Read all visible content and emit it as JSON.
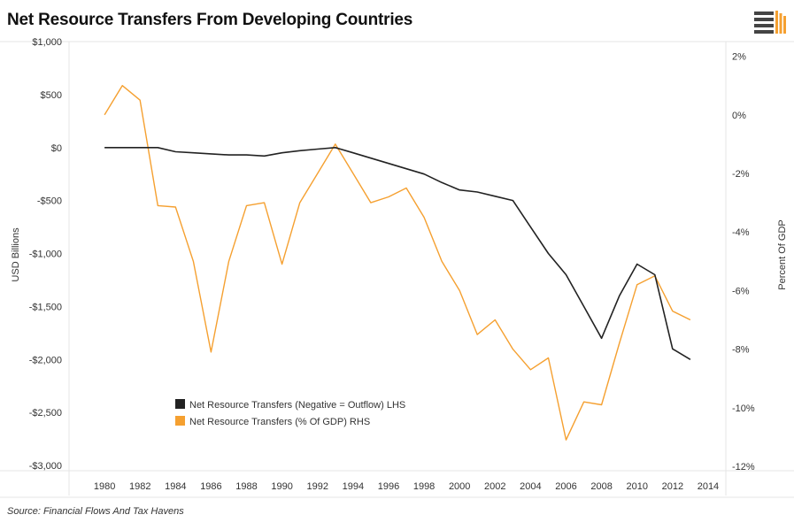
{
  "title": "Net Resource Transfers From Developing Countries",
  "source": "Source: Financial Flows And Tax Havens",
  "colors": {
    "usd_series": "#222222",
    "gdp_series": "#f5a030",
    "grid": "#e6e6e6",
    "logo": "#f5a030"
  },
  "chart_data": {
    "type": "line",
    "title": "Net Resource Transfers From Developing Countries",
    "xlabel": "",
    "ylabel": "USD Billions",
    "y2label": "Percent Of GDP",
    "xlim": [
      1978,
      2015
    ],
    "ylim": [
      -3050,
      1000
    ],
    "y2lim": [
      -12.15,
      2.5
    ],
    "x_ticks": [
      1980,
      1982,
      1984,
      1986,
      1988,
      1990,
      1992,
      1994,
      1996,
      1998,
      2000,
      2002,
      2004,
      2006,
      2008,
      2010,
      2012,
      2014
    ],
    "y_ticks": [
      {
        "value": 1000,
        "label": "$1,000"
      },
      {
        "value": 500,
        "label": "$500"
      },
      {
        "value": 0,
        "label": "$0"
      },
      {
        "value": -500,
        "label": "-$500"
      },
      {
        "value": -1000,
        "label": "-$1,000"
      },
      {
        "value": -1500,
        "label": "-$1,500"
      },
      {
        "value": -2000,
        "label": "-$2,000"
      },
      {
        "value": -2500,
        "label": "-$2,500"
      },
      {
        "value": -3000,
        "label": "-$3,000"
      }
    ],
    "y2_ticks": [
      {
        "value": 2,
        "label": "2%"
      },
      {
        "value": 0,
        "label": "0%"
      },
      {
        "value": -2,
        "label": "-2%"
      },
      {
        "value": -4,
        "label": "-4%"
      },
      {
        "value": -6,
        "label": "-6%"
      },
      {
        "value": -8,
        "label": "-8%"
      },
      {
        "value": -10,
        "label": "-10%"
      },
      {
        "value": -12,
        "label": "-12%"
      }
    ],
    "legend_position": "bottom-left",
    "series": [
      {
        "name": "Net Resource Transfers (Negative = Outflow) LHS",
        "axis": "left",
        "x": [
          1980,
          1981,
          1982,
          1983,
          1984,
          1985,
          1986,
          1987,
          1988,
          1989,
          1990,
          1991,
          1992,
          1993,
          1994,
          1995,
          1996,
          1997,
          1998,
          1999,
          2000,
          2001,
          2002,
          2003,
          2004,
          2005,
          2006,
          2007,
          2008,
          2009,
          2010,
          2011,
          2012,
          2013
        ],
        "y": [
          0,
          0,
          0,
          0,
          -40,
          -50,
          -60,
          -70,
          -70,
          -80,
          -50,
          -30,
          -15,
          0,
          -50,
          -100,
          -150,
          -200,
          -250,
          -330,
          -400,
          -420,
          -460,
          -500,
          -750,
          -1000,
          -1200,
          -1500,
          -1800,
          -1400,
          -1100,
          -1200,
          -1900,
          -2000
        ]
      },
      {
        "name": "Net Resource Transfers (% Of GDP) RHS",
        "axis": "right",
        "x": [
          1980,
          1981,
          1982,
          1983,
          1984,
          1985,
          1986,
          1987,
          1988,
          1989,
          1990,
          1991,
          1992,
          1993,
          1994,
          1995,
          1996,
          1997,
          1998,
          1999,
          2000,
          2001,
          2002,
          2003,
          2004,
          2005,
          2006,
          2007,
          2008,
          2009,
          2010,
          2011,
          2012,
          2013
        ],
        "y": [
          0,
          1,
          0.5,
          -3.1,
          -3.15,
          -5,
          -8.1,
          -5,
          -3.1,
          -3,
          -5.1,
          -3,
          -2,
          -1,
          -2,
          -3,
          -2.8,
          -2.5,
          -3.5,
          -5,
          -6,
          -7.5,
          -7,
          -8,
          -8.7,
          -8.3,
          -11.1,
          -9.8,
          -9.9,
          -7.8,
          -5.8,
          -5.5,
          -6.7,
          -7
        ]
      }
    ]
  }
}
